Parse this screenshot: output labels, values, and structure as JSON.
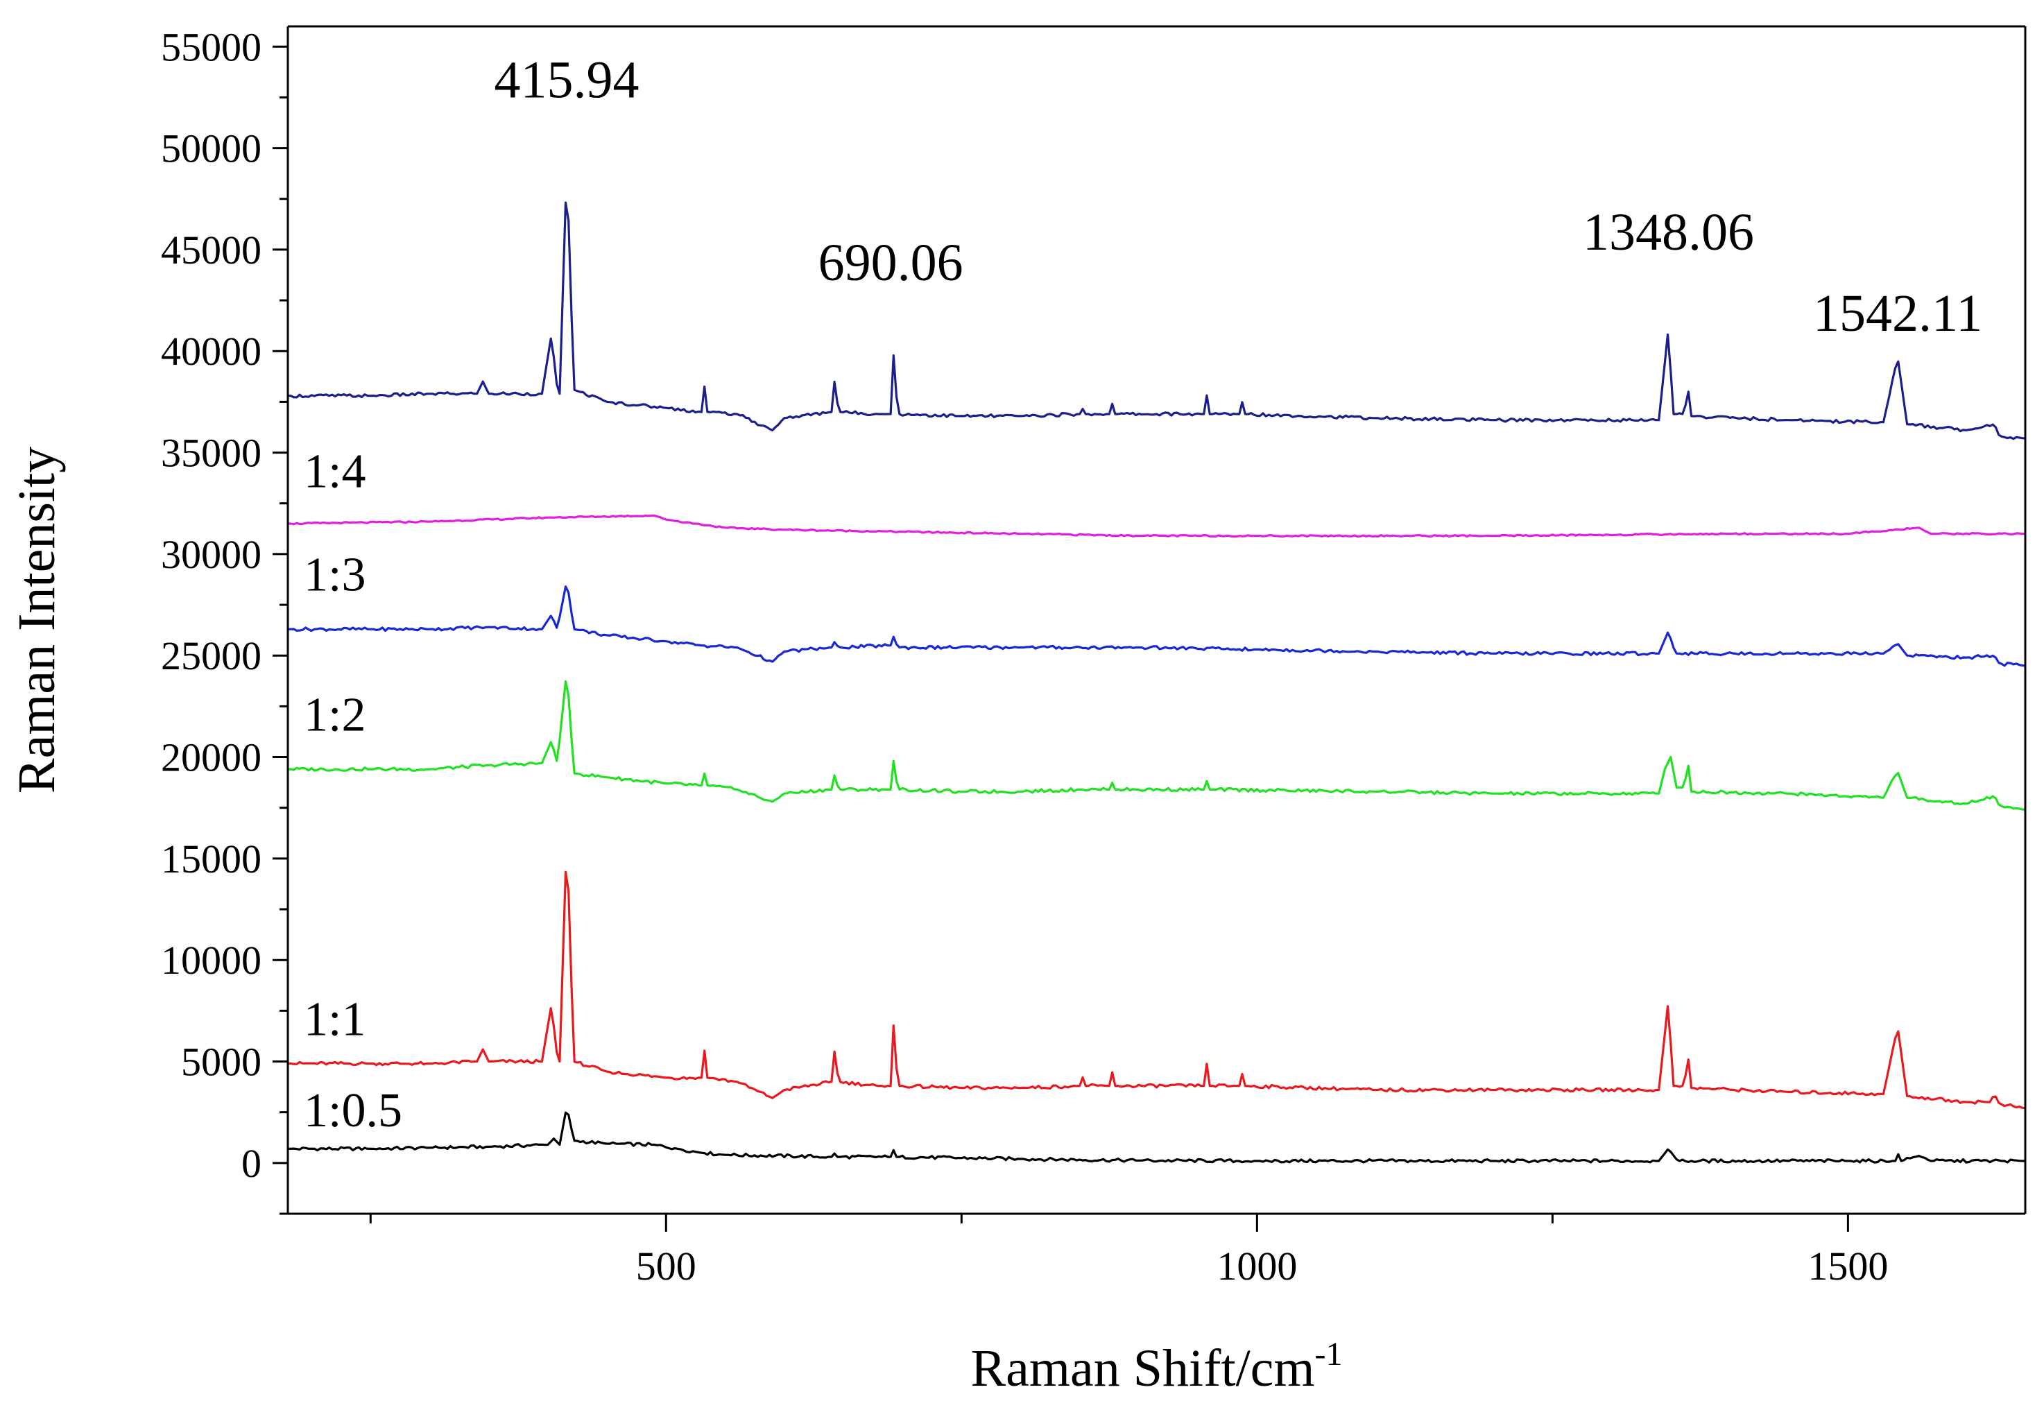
{
  "chart_data": {
    "type": "line",
    "title": "",
    "xlabel": "Raman Shift/cm",
    "xlabel_sup": "-1",
    "ylabel": "Raman Intensity",
    "xlim": [
      180,
      1650
    ],
    "ylim": [
      -2500,
      56000
    ],
    "x_ticks": [
      500,
      1000,
      1500
    ],
    "x_tick_labels": [
      "500",
      "1000",
      "1500"
    ],
    "y_ticks": [
      0,
      5000,
      10000,
      15000,
      20000,
      25000,
      30000,
      35000,
      40000,
      45000,
      50000,
      55000
    ],
    "y_tick_labels": [
      "0",
      "5000",
      "10000",
      "15000",
      "20000",
      "25000",
      "30000",
      "35000",
      "40000",
      "45000",
      "50000",
      "55000"
    ],
    "grid": false,
    "peak_annotations": [
      {
        "x": 415.94,
        "label": "415.94",
        "y": 52500
      },
      {
        "x": 690.06,
        "label": "690.06",
        "y": 43500
      },
      {
        "x": 1348.06,
        "label": "1348.06",
        "y": 45000
      },
      {
        "x": 1542.11,
        "label": "1542.11",
        "y": 41000
      }
    ],
    "series": [
      {
        "name": "1:0.5",
        "color": "#000000",
        "label_y": 1800,
        "points": [
          [
            180,
            700
          ],
          [
            250,
            700
          ],
          [
            300,
            750
          ],
          [
            350,
            800
          ],
          [
            400,
            900
          ],
          [
            405,
            1200
          ],
          [
            410,
            900
          ],
          [
            416,
            2800
          ],
          [
            422,
            1100
          ],
          [
            450,
            950
          ],
          [
            490,
            900
          ],
          [
            510,
            700
          ],
          [
            530,
            500
          ],
          [
            550,
            400
          ],
          [
            640,
            300
          ],
          [
            642,
            500
          ],
          [
            645,
            300
          ],
          [
            690,
            300
          ],
          [
            692,
            700
          ],
          [
            695,
            300
          ],
          [
            800,
            200
          ],
          [
            900,
            120
          ],
          [
            1000,
            100
          ],
          [
            1200,
            100
          ],
          [
            1340,
            100
          ],
          [
            1348,
            700
          ],
          [
            1356,
            100
          ],
          [
            1500,
            100
          ],
          [
            1540,
            100
          ],
          [
            1542,
            500
          ],
          [
            1545,
            100
          ],
          [
            1560,
            350
          ],
          [
            1570,
            100
          ],
          [
            1650,
            100
          ]
        ]
      },
      {
        "name": "1:1",
        "color": "#e8191f",
        "label_y": 6300,
        "points": [
          [
            180,
            4900
          ],
          [
            250,
            4900
          ],
          [
            300,
            4900
          ],
          [
            340,
            5000
          ],
          [
            345,
            5600
          ],
          [
            350,
            5000
          ],
          [
            395,
            5000
          ],
          [
            403,
            7800
          ],
          [
            408,
            5200
          ],
          [
            410,
            5000
          ],
          [
            416,
            16200
          ],
          [
            422,
            5000
          ],
          [
            450,
            4500
          ],
          [
            500,
            4200
          ],
          [
            530,
            4200
          ],
          [
            532,
            5800
          ],
          [
            535,
            4200
          ],
          [
            560,
            4000
          ],
          [
            590,
            3200
          ],
          [
            600,
            3600
          ],
          [
            640,
            4000
          ],
          [
            642,
            5700
          ],
          [
            646,
            4000
          ],
          [
            680,
            3800
          ],
          [
            690,
            3800
          ],
          [
            692,
            7200
          ],
          [
            696,
            3800
          ],
          [
            750,
            3700
          ],
          [
            800,
            3700
          ],
          [
            850,
            3800
          ],
          [
            852,
            4300
          ],
          [
            855,
            3800
          ],
          [
            875,
            3800
          ],
          [
            877,
            4600
          ],
          [
            880,
            3800
          ],
          [
            955,
            3800
          ],
          [
            957,
            5100
          ],
          [
            960,
            3800
          ],
          [
            985,
            3800
          ],
          [
            987,
            4500
          ],
          [
            990,
            3800
          ],
          [
            1100,
            3600
          ],
          [
            1200,
            3600
          ],
          [
            1340,
            3600
          ],
          [
            1348,
            8000
          ],
          [
            1352,
            3800
          ],
          [
            1362,
            3800
          ],
          [
            1364,
            5800
          ],
          [
            1367,
            3700
          ],
          [
            1450,
            3500
          ],
          [
            1530,
            3400
          ],
          [
            1542,
            6700
          ],
          [
            1550,
            3300
          ],
          [
            1600,
            3000
          ],
          [
            1620,
            3000
          ],
          [
            1624,
            3400
          ],
          [
            1628,
            2900
          ],
          [
            1650,
            2700
          ]
        ]
      },
      {
        "name": "1:2",
        "color": "#22e022",
        "label_y": 21300,
        "points": [
          [
            180,
            19400
          ],
          [
            250,
            19400
          ],
          [
            300,
            19400
          ],
          [
            350,
            19600
          ],
          [
            395,
            19700
          ],
          [
            403,
            20800
          ],
          [
            408,
            19700
          ],
          [
            416,
            24300
          ],
          [
            422,
            19200
          ],
          [
            450,
            19000
          ],
          [
            500,
            18700
          ],
          [
            530,
            18600
          ],
          [
            532,
            19300
          ],
          [
            535,
            18600
          ],
          [
            560,
            18400
          ],
          [
            590,
            17800
          ],
          [
            600,
            18200
          ],
          [
            640,
            18400
          ],
          [
            642,
            19200
          ],
          [
            646,
            18400
          ],
          [
            690,
            18400
          ],
          [
            692,
            20000
          ],
          [
            696,
            18400
          ],
          [
            750,
            18300
          ],
          [
            800,
            18300
          ],
          [
            850,
            18400
          ],
          [
            875,
            18400
          ],
          [
            877,
            18800
          ],
          [
            880,
            18400
          ],
          [
            955,
            18400
          ],
          [
            957,
            18900
          ],
          [
            960,
            18400
          ],
          [
            1100,
            18300
          ],
          [
            1200,
            18200
          ],
          [
            1340,
            18200
          ],
          [
            1345,
            19400
          ],
          [
            1350,
            20000
          ],
          [
            1355,
            18500
          ],
          [
            1362,
            18500
          ],
          [
            1364,
            20200
          ],
          [
            1367,
            18300
          ],
          [
            1450,
            18200
          ],
          [
            1530,
            18000
          ],
          [
            1542,
            19300
          ],
          [
            1550,
            18000
          ],
          [
            1600,
            17700
          ],
          [
            1624,
            18100
          ],
          [
            1628,
            17600
          ],
          [
            1650,
            17400
          ]
        ]
      },
      {
        "name": "1:3",
        "color": "#1a27d6",
        "label_y": 28200,
        "points": [
          [
            180,
            26300
          ],
          [
            250,
            26300
          ],
          [
            300,
            26300
          ],
          [
            350,
            26400
          ],
          [
            395,
            26300
          ],
          [
            403,
            27000
          ],
          [
            408,
            26300
          ],
          [
            416,
            28700
          ],
          [
            422,
            26300
          ],
          [
            450,
            26000
          ],
          [
            500,
            25700
          ],
          [
            530,
            25500
          ],
          [
            560,
            25400
          ],
          [
            590,
            24700
          ],
          [
            600,
            25200
          ],
          [
            640,
            25400
          ],
          [
            642,
            25700
          ],
          [
            646,
            25400
          ],
          [
            690,
            25500
          ],
          [
            692,
            26000
          ],
          [
            696,
            25400
          ],
          [
            800,
            25400
          ],
          [
            900,
            25400
          ],
          [
            1000,
            25300
          ],
          [
            1100,
            25200
          ],
          [
            1200,
            25100
          ],
          [
            1340,
            25100
          ],
          [
            1348,
            26200
          ],
          [
            1354,
            25100
          ],
          [
            1450,
            25100
          ],
          [
            1530,
            25100
          ],
          [
            1542,
            25600
          ],
          [
            1550,
            25000
          ],
          [
            1600,
            24900
          ],
          [
            1624,
            25000
          ],
          [
            1628,
            24600
          ],
          [
            1650,
            24500
          ]
        ]
      },
      {
        "name": "1:4",
        "color": "#e020e0",
        "label_y": 33300,
        "points": [
          [
            180,
            31500
          ],
          [
            300,
            31600
          ],
          [
            400,
            31800
          ],
          [
            490,
            31900
          ],
          [
            500,
            31700
          ],
          [
            550,
            31300
          ],
          [
            600,
            31200
          ],
          [
            700,
            31100
          ],
          [
            800,
            31000
          ],
          [
            900,
            30900
          ],
          [
            1000,
            30900
          ],
          [
            1200,
            30900
          ],
          [
            1400,
            31000
          ],
          [
            1500,
            31000
          ],
          [
            1560,
            31300
          ],
          [
            1570,
            31000
          ],
          [
            1650,
            31000
          ]
        ]
      },
      {
        "name": "",
        "color": "#1c1f8a",
        "label_y": 0,
        "points": [
          [
            180,
            37800
          ],
          [
            250,
            37800
          ],
          [
            300,
            37900
          ],
          [
            340,
            37900
          ],
          [
            345,
            38500
          ],
          [
            350,
            37900
          ],
          [
            395,
            37900
          ],
          [
            403,
            40800
          ],
          [
            408,
            38100
          ],
          [
            410,
            37900
          ],
          [
            416,
            49200
          ],
          [
            422,
            38100
          ],
          [
            450,
            37500
          ],
          [
            500,
            37200
          ],
          [
            530,
            37000
          ],
          [
            532,
            38500
          ],
          [
            535,
            37000
          ],
          [
            560,
            36900
          ],
          [
            590,
            36100
          ],
          [
            600,
            36700
          ],
          [
            640,
            37000
          ],
          [
            642,
            38700
          ],
          [
            646,
            37000
          ],
          [
            680,
            36900
          ],
          [
            690,
            36900
          ],
          [
            692,
            40200
          ],
          [
            696,
            36900
          ],
          [
            750,
            36800
          ],
          [
            800,
            36800
          ],
          [
            850,
            36900
          ],
          [
            852,
            37200
          ],
          [
            855,
            36900
          ],
          [
            875,
            36900
          ],
          [
            877,
            37500
          ],
          [
            880,
            36900
          ],
          [
            955,
            36900
          ],
          [
            957,
            38000
          ],
          [
            960,
            36900
          ],
          [
            985,
            36900
          ],
          [
            987,
            37600
          ],
          [
            990,
            36900
          ],
          [
            1100,
            36700
          ],
          [
            1200,
            36600
          ],
          [
            1340,
            36600
          ],
          [
            1348,
            41100
          ],
          [
            1352,
            36900
          ],
          [
            1362,
            36900
          ],
          [
            1364,
            38600
          ],
          [
            1367,
            36800
          ],
          [
            1450,
            36600
          ],
          [
            1530,
            36500
          ],
          [
            1542,
            39700
          ],
          [
            1550,
            36400
          ],
          [
            1600,
            36100
          ],
          [
            1624,
            36400
          ],
          [
            1628,
            35800
          ],
          [
            1650,
            35700
          ]
        ]
      }
    ]
  }
}
